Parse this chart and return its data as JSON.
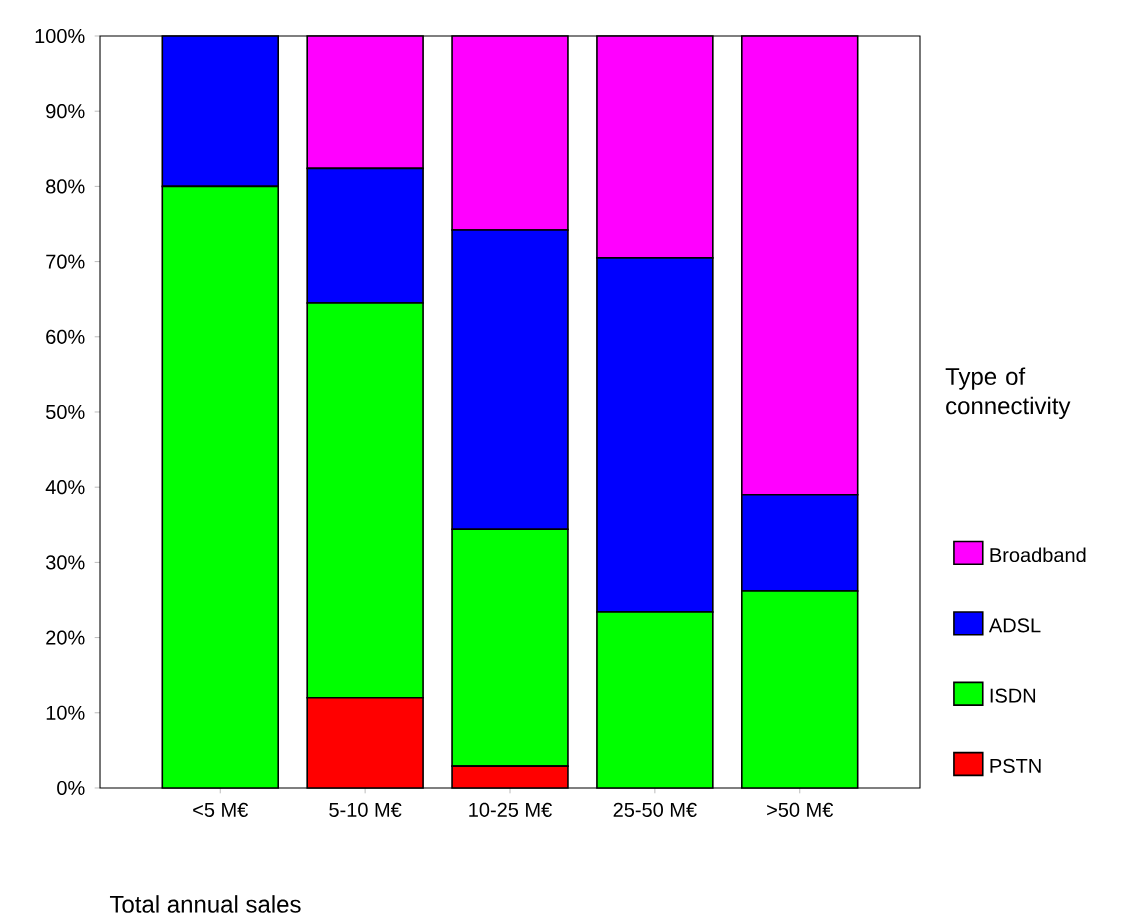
{
  "chart_data": {
    "type": "bar",
    "stacked": true,
    "xlabel": "Total annual sales",
    "legend_title": "Type of connectivity",
    "legend": "right",
    "categories": [
      "<5 M€",
      "5-10 M€",
      "10-25 M€",
      "25-50 M€",
      ">50 M€"
    ],
    "series": [
      {
        "name": "PSTN",
        "color": "#ff0000",
        "values": [
          0,
          12.0,
          2.9,
          0,
          0
        ]
      },
      {
        "name": "ISDN",
        "color": "#00ff00",
        "values": [
          80.0,
          52.5,
          31.5,
          23.4,
          26.2
        ]
      },
      {
        "name": "ADSL",
        "color": "#0000ff",
        "values": [
          20.0,
          17.9,
          39.8,
          47.1,
          12.8
        ]
      },
      {
        "name": "Broadband",
        "color": "#ff00ff",
        "values": [
          0,
          17.6,
          25.8,
          29.5,
          61.0
        ]
      }
    ],
    "ylim": [
      0,
      100
    ],
    "yticks": [
      {
        "value": 0,
        "label": "0%"
      },
      {
        "value": 10,
        "label": "10%"
      },
      {
        "value": 20,
        "label": "20%"
      },
      {
        "value": 30,
        "label": "30%"
      },
      {
        "value": 40,
        "label": "40%"
      },
      {
        "value": 50,
        "label": "50%"
      },
      {
        "value": 60,
        "label": "60%"
      },
      {
        "value": 70,
        "label": "70%"
      },
      {
        "value": 80,
        "label": "80%"
      },
      {
        "value": 90,
        "label": "90%"
      },
      {
        "value": 100,
        "label": "100%"
      }
    ]
  }
}
